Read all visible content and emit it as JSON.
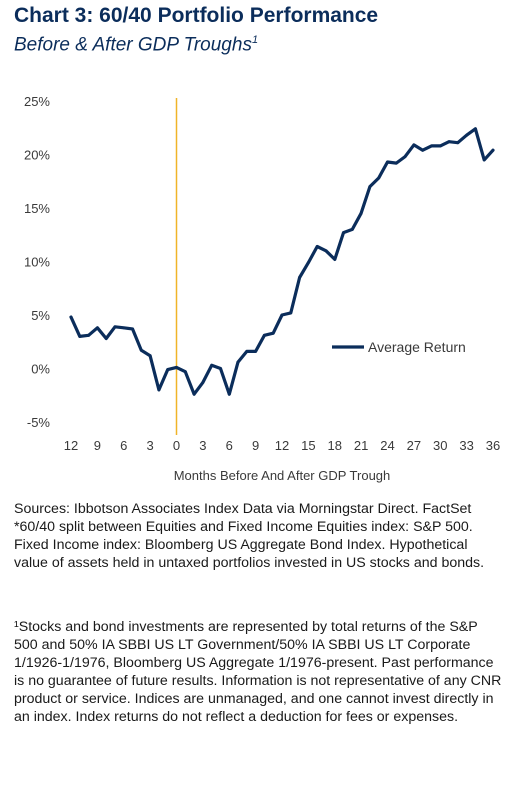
{
  "title": "Chart 3: 60/40 Portfolio Performance",
  "subtitle": "Before & After GDP Troughs",
  "subtitle_marker": "1",
  "sources": "Sources: Ibbotson Associates Index Data via Morningstar Direct. FactSet *60/40 split between Equities and Fixed Income Equities index: S&P 500. Fixed Income index: Bloomberg US Aggregate Bond Index. Hypothetical value of assets held in untaxed portfolios invested in US stocks and bonds.",
  "footnote": "¹Stocks and bond investments are represented by total returns of the S&P 500 and 50% IA SBBI US LT Government/50% IA SBBI US LT Corporate 1/1926-1/1976, Bloomberg US Aggregate 1/1976-present. Past performance is no guarantee of future results. Information is not representative of any CNR product or service. Indices are unmanaged, and one cannot invest directly in an index. Index returns do not reflect a deduction for fees or expenses.",
  "chart_data": {
    "type": "line",
    "title": "Chart 3: 60/40 Portfolio Performance",
    "subtitle": "Before & After GDP Troughs",
    "xlabel": "Months Before And After GDP Trough",
    "ylabel": "",
    "ylim": [
      -5,
      25
    ],
    "xlim": [
      -12,
      36
    ],
    "y_ticks": [
      25,
      20,
      15,
      10,
      5,
      0,
      -5
    ],
    "y_tick_labels": [
      "25%",
      "20%",
      "15%",
      "10%",
      "5%",
      "0%",
      "-5%"
    ],
    "x_ticks": [
      -12,
      -9,
      -6,
      -3,
      0,
      3,
      6,
      9,
      12,
      15,
      18,
      21,
      24,
      27,
      30,
      33,
      36
    ],
    "x_tick_labels": [
      "12",
      "9",
      "6",
      "3",
      "0",
      "3",
      "6",
      "9",
      "12",
      "15",
      "18",
      "21",
      "24",
      "27",
      "30",
      "33",
      "36"
    ],
    "grid": false,
    "legend": "right",
    "reference_line": {
      "x": 0,
      "color": "#f0b429"
    },
    "series": [
      {
        "name": "Average Return",
        "color": "#0b2d5b",
        "x": [
          -12,
          -11,
          -10,
          -9,
          -8,
          -7,
          -6,
          -5,
          -4,
          -3,
          -2,
          -1,
          0,
          1,
          2,
          3,
          4,
          5,
          6,
          7,
          8,
          9,
          10,
          11,
          12,
          13,
          14,
          15,
          16,
          17,
          18,
          19,
          20,
          21,
          22,
          23,
          24,
          25,
          26,
          27,
          28,
          29,
          30,
          31,
          32,
          33,
          34,
          35,
          36
        ],
        "values": [
          4.8,
          3.0,
          3.1,
          3.8,
          2.8,
          3.9,
          3.8,
          3.7,
          1.7,
          1.2,
          -2.0,
          -0.1,
          0.1,
          -0.3,
          -2.4,
          -1.3,
          0.3,
          0.0,
          -2.4,
          0.6,
          1.6,
          1.6,
          3.1,
          3.3,
          5.0,
          5.2,
          8.5,
          9.9,
          11.4,
          11.0,
          10.2,
          12.7,
          13.0,
          14.5,
          17.0,
          17.8,
          19.3,
          19.2,
          19.8,
          20.9,
          20.4,
          20.8,
          20.8,
          21.2,
          21.1,
          21.8,
          22.4,
          19.5,
          20.4
        ]
      }
    ]
  }
}
